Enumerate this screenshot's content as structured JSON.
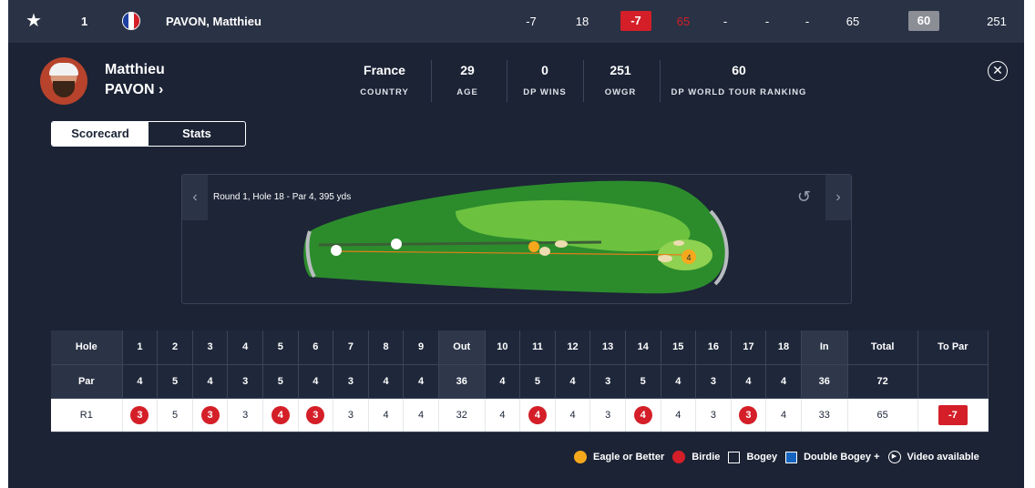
{
  "leaderboard_row": {
    "position": "1",
    "player_name": "PAVON, Matthieu",
    "to_par": "-7",
    "thru": "18",
    "today": "-7",
    "r1": "65",
    "r2": "-",
    "r3": "-",
    "r4": "-",
    "total": "65",
    "rank": "60",
    "owgr": "251"
  },
  "player": {
    "first_name": "Matthieu",
    "last_name": "PAVON",
    "stats": [
      {
        "value": "France",
        "label": "COUNTRY"
      },
      {
        "value": "29",
        "label": "AGE"
      },
      {
        "value": "0",
        "label": "DP WINS"
      },
      {
        "value": "251",
        "label": "OWGR"
      },
      {
        "value": "60",
        "label": "DP WORLD TOUR RANKING"
      }
    ]
  },
  "tabs": [
    "Scorecard",
    "Stats"
  ],
  "map": {
    "label": "Round 1, Hole 18 - Par 4, 395 yds",
    "pin_number": "4"
  },
  "scorecard": {
    "hole_header": "Hole",
    "par_header": "Par",
    "round_label": "R1",
    "holes": [
      "1",
      "2",
      "3",
      "4",
      "5",
      "6",
      "7",
      "8",
      "9",
      "Out",
      "10",
      "11",
      "12",
      "13",
      "14",
      "15",
      "16",
      "17",
      "18",
      "In",
      "Total",
      "To Par"
    ],
    "pars": [
      "4",
      "5",
      "4",
      "3",
      "5",
      "4",
      "3",
      "4",
      "4",
      "36",
      "4",
      "5",
      "4",
      "3",
      "5",
      "4",
      "3",
      "4",
      "4",
      "36",
      "72",
      ""
    ],
    "scores": [
      "3",
      "5",
      "3",
      "3",
      "4",
      "3",
      "3",
      "4",
      "4",
      "32",
      "4",
      "4",
      "4",
      "3",
      "4",
      "4",
      "3",
      "3",
      "4",
      "33",
      "65",
      "-7"
    ]
  },
  "legend": [
    "Eagle or Better",
    "Birdie",
    "Bogey",
    "Double Bogey +",
    "Video available"
  ],
  "colors": {
    "background": "#1b2335",
    "birdie": "#d41f28",
    "eagle": "#f6a81c",
    "double_bogey": "#1565c0"
  }
}
